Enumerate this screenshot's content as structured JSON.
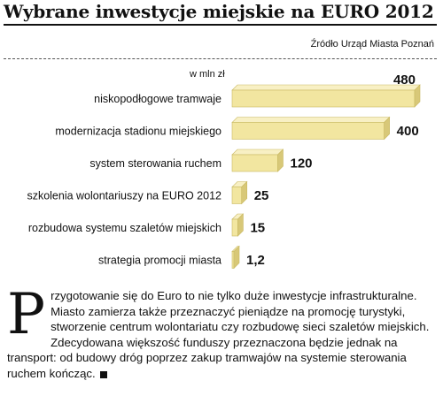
{
  "header": {
    "title": "Wybrane inwestycje miejskie na EURO 2012",
    "source": "Źródło Urząd Miasta Poznań",
    "unit": "w mln zł"
  },
  "chart_data": {
    "type": "bar",
    "orientation": "horizontal",
    "categories": [
      "niskopodłogowe tramwaje",
      "modernizacja stadionu miejskiego",
      "system sterowania ruchem",
      "szkolenia wolontariuszy na EURO 2012",
      "rozbudowa systemu szaletów miejskich",
      "strategia promocji miasta"
    ],
    "values": [
      480,
      400,
      120,
      25,
      15,
      1.2
    ],
    "value_labels": [
      "480",
      "400",
      "120",
      "25",
      "15",
      "1,2"
    ],
    "title": "Wybrane inwestycje miejskie na EURO 2012",
    "xlabel": "w mln zł",
    "ylabel": "",
    "xlim": [
      0,
      480
    ],
    "grid": false,
    "legend": "none",
    "bar_color": "#f2e6a0",
    "bar_top_color": "#f8f0c4",
    "bar_end_color": "#d8c878"
  },
  "article": {
    "dropcap": "P",
    "text": "rzygotowanie się do Euro to nie tylko duże inwestycje infrastrukturalne. Miasto zamierza także przeznaczyć pieniądze na promocję turystyki, stworzenie centrum wolontariatu czy rozbudowę sieci szaletów miejskich. Zdecydowana większość funduszy przeznaczona będzie jednak na transport: od budowy dróg poprzez zakup tramwajów na systemie sterowania ruchem kończąc."
  }
}
